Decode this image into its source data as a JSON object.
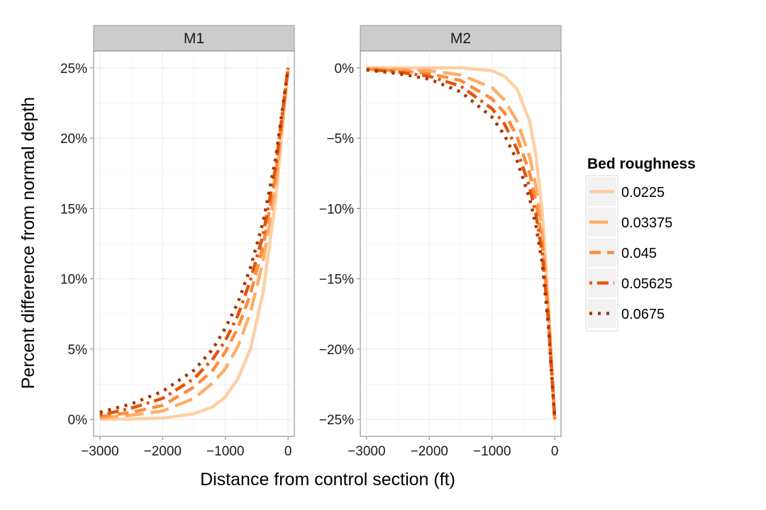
{
  "chart_data": {
    "type": "line",
    "xlabel": "Distance from control section  (ft)",
    "ylabel": "Percent difference from normal depth",
    "legend": {
      "title": "Bed roughness",
      "placement": "right",
      "entries": [
        "0.0225",
        "0.03375",
        "0.045",
        "0.05625",
        "0.0675"
      ]
    },
    "series_style": [
      {
        "color": "#FDD0A2",
        "dash": "solid"
      },
      {
        "color": "#FDAE6B",
        "dash": "long-dash"
      },
      {
        "color": "#FD8D3C",
        "dash": "dash"
      },
      {
        "color": "#E6550D",
        "dash": "dot-dash"
      },
      {
        "color": "#A63603",
        "dash": "dot"
      }
    ],
    "grid": true,
    "panels": [
      {
        "strip": "M1",
        "xlim": [
          -3100,
          100
        ],
        "ylim": [
          -1.2,
          26.2
        ],
        "x_ticks": [
          -3000,
          -2000,
          -1000,
          0
        ],
        "x_tick_labels": [
          "−3000",
          "−2000",
          "−1000",
          "0"
        ],
        "y_ticks": [
          0,
          5,
          10,
          15,
          20,
          25
        ],
        "y_tick_labels": [
          "0%",
          "5%",
          "10%",
          "15%",
          "20%",
          "25%"
        ],
        "series": [
          {
            "name": "0.0225",
            "x": [
              -3000,
              -2500,
              -2000,
              -1500,
              -1200,
              -1000,
              -800,
              -600,
              -400,
              -200,
              0
            ],
            "y": [
              0.01,
              0.03,
              0.1,
              0.4,
              0.9,
              1.6,
              2.9,
              5.0,
              9.0,
              15.5,
              25
            ]
          },
          {
            "name": "0.03375",
            "x": [
              -3000,
              -2500,
              -2000,
              -1500,
              -1200,
              -1000,
              -800,
              -600,
              -400,
              -200,
              0
            ],
            "y": [
              0.1,
              0.3,
              0.6,
              1.5,
              2.6,
              3.6,
              5.2,
              7.6,
              11.2,
              16.5,
              25
            ]
          },
          {
            "name": "0.045",
            "x": [
              -3000,
              -2500,
              -2000,
              -1500,
              -1200,
              -1000,
              -800,
              -600,
              -400,
              -200,
              0
            ],
            "y": [
              0.2,
              0.5,
              1.0,
              2.3,
              3.5,
              4.8,
              6.5,
              8.9,
              12.3,
              17.3,
              25
            ]
          },
          {
            "name": "0.05625",
            "x": [
              -3000,
              -2500,
              -2000,
              -1500,
              -1200,
              -1000,
              -800,
              -600,
              -400,
              -200,
              0
            ],
            "y": [
              0.3,
              0.8,
              1.5,
              2.9,
              4.3,
              5.6,
              7.4,
              9.9,
              13.1,
              17.9,
              25
            ]
          },
          {
            "name": "0.0675",
            "x": [
              -3000,
              -2500,
              -2000,
              -1500,
              -1200,
              -1000,
              -800,
              -600,
              -400,
              -200,
              0
            ],
            "y": [
              0.5,
              1.1,
              2.0,
              3.5,
              5.0,
              6.5,
              8.3,
              10.8,
              14.0,
              18.5,
              25
            ]
          }
        ]
      },
      {
        "strip": "M2",
        "xlim": [
          -3100,
          100
        ],
        "ylim": [
          -26.2,
          1.2
        ],
        "x_ticks": [
          -3000,
          -2000,
          -1000,
          0
        ],
        "x_tick_labels": [
          "−3000",
          "−2000",
          "−1000",
          "0"
        ],
        "y_ticks": [
          0,
          -5,
          -10,
          -15,
          -20,
          -25
        ],
        "y_tick_labels": [
          "0%",
          "−5%",
          "−10%",
          "−15%",
          "−20%",
          "−25%"
        ],
        "series": [
          {
            "name": "0.0225",
            "x": [
              -3000,
              -2500,
              -2000,
              -1500,
              -1000,
              -800,
              -600,
              -400,
              -300,
              -200,
              -100,
              -50,
              0
            ],
            "y": [
              0,
              0,
              0,
              0,
              -0.2,
              -0.6,
              -1.5,
              -3.8,
              -6.2,
              -10.2,
              -16.8,
              -21.0,
              -25
            ]
          },
          {
            "name": "0.03375",
            "x": [
              -3000,
              -2500,
              -2000,
              -1500,
              -1000,
              -800,
              -600,
              -400,
              -300,
              -200,
              -100,
              -50,
              0
            ],
            "y": [
              -0.05,
              -0.1,
              -0.2,
              -0.5,
              -1.4,
              -2.3,
              -3.8,
              -6.3,
              -8.4,
              -11.6,
              -17.2,
              -21.2,
              -25
            ]
          },
          {
            "name": "0.045",
            "x": [
              -3000,
              -2500,
              -2000,
              -1500,
              -1000,
              -800,
              -600,
              -400,
              -300,
              -200,
              -100,
              -50,
              0
            ],
            "y": [
              -0.1,
              -0.2,
              -0.4,
              -0.9,
              -2.2,
              -3.2,
              -4.9,
              -7.5,
              -9.5,
              -12.4,
              -17.6,
              -21.4,
              -25
            ]
          },
          {
            "name": "0.05625",
            "x": [
              -3000,
              -2500,
              -2000,
              -1500,
              -1000,
              -800,
              -600,
              -400,
              -300,
              -200,
              -100,
              -50,
              0
            ],
            "y": [
              -0.1,
              -0.3,
              -0.6,
              -1.3,
              -2.9,
              -4.0,
              -5.8,
              -8.5,
              -10.4,
              -13.2,
              -18.0,
              -21.6,
              -25
            ]
          },
          {
            "name": "0.0675",
            "x": [
              -3000,
              -2500,
              -2000,
              -1500,
              -1000,
              -800,
              -600,
              -400,
              -300,
              -200,
              -100,
              -50,
              0
            ],
            "y": [
              -0.15,
              -0.4,
              -0.8,
              -1.7,
              -3.5,
              -4.8,
              -6.6,
              -9.3,
              -11.2,
              -13.9,
              -18.4,
              -21.8,
              -25
            ]
          }
        ]
      }
    ]
  }
}
